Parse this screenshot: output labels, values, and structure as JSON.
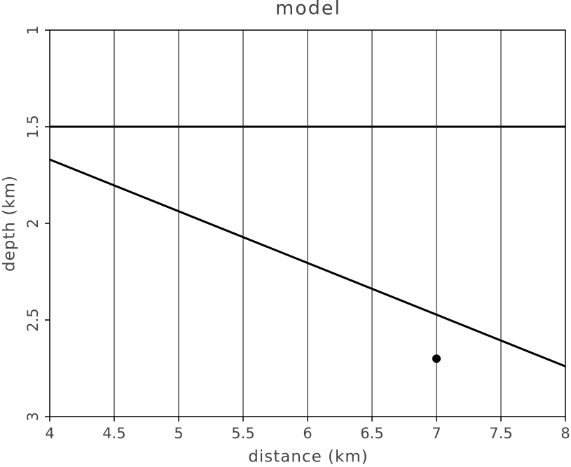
{
  "chart_data": {
    "type": "line",
    "title": "model",
    "x_label": "distance (km)",
    "y_label": "depth (km)",
    "xlim": [
      4,
      8
    ],
    "xticks": [
      4,
      4.5,
      5,
      5.5,
      6,
      6.5,
      7,
      7.5,
      8
    ],
    "ylim": [
      1,
      3
    ],
    "yticks": [
      1,
      1.5,
      2,
      2.5,
      3
    ],
    "y_reversed": true,
    "grid": "x",
    "series": [
      {
        "type": "line",
        "color": "#000000",
        "x": [
          4,
          8
        ],
        "values": [
          1.5,
          1.5
        ]
      },
      {
        "type": "line",
        "color": "#000000",
        "x": [
          4,
          8
        ],
        "values": [
          1.67,
          2.74
        ]
      },
      {
        "type": "scatter",
        "color": "#000000",
        "x": [
          7
        ],
        "values": [
          2.7
        ]
      }
    ]
  }
}
